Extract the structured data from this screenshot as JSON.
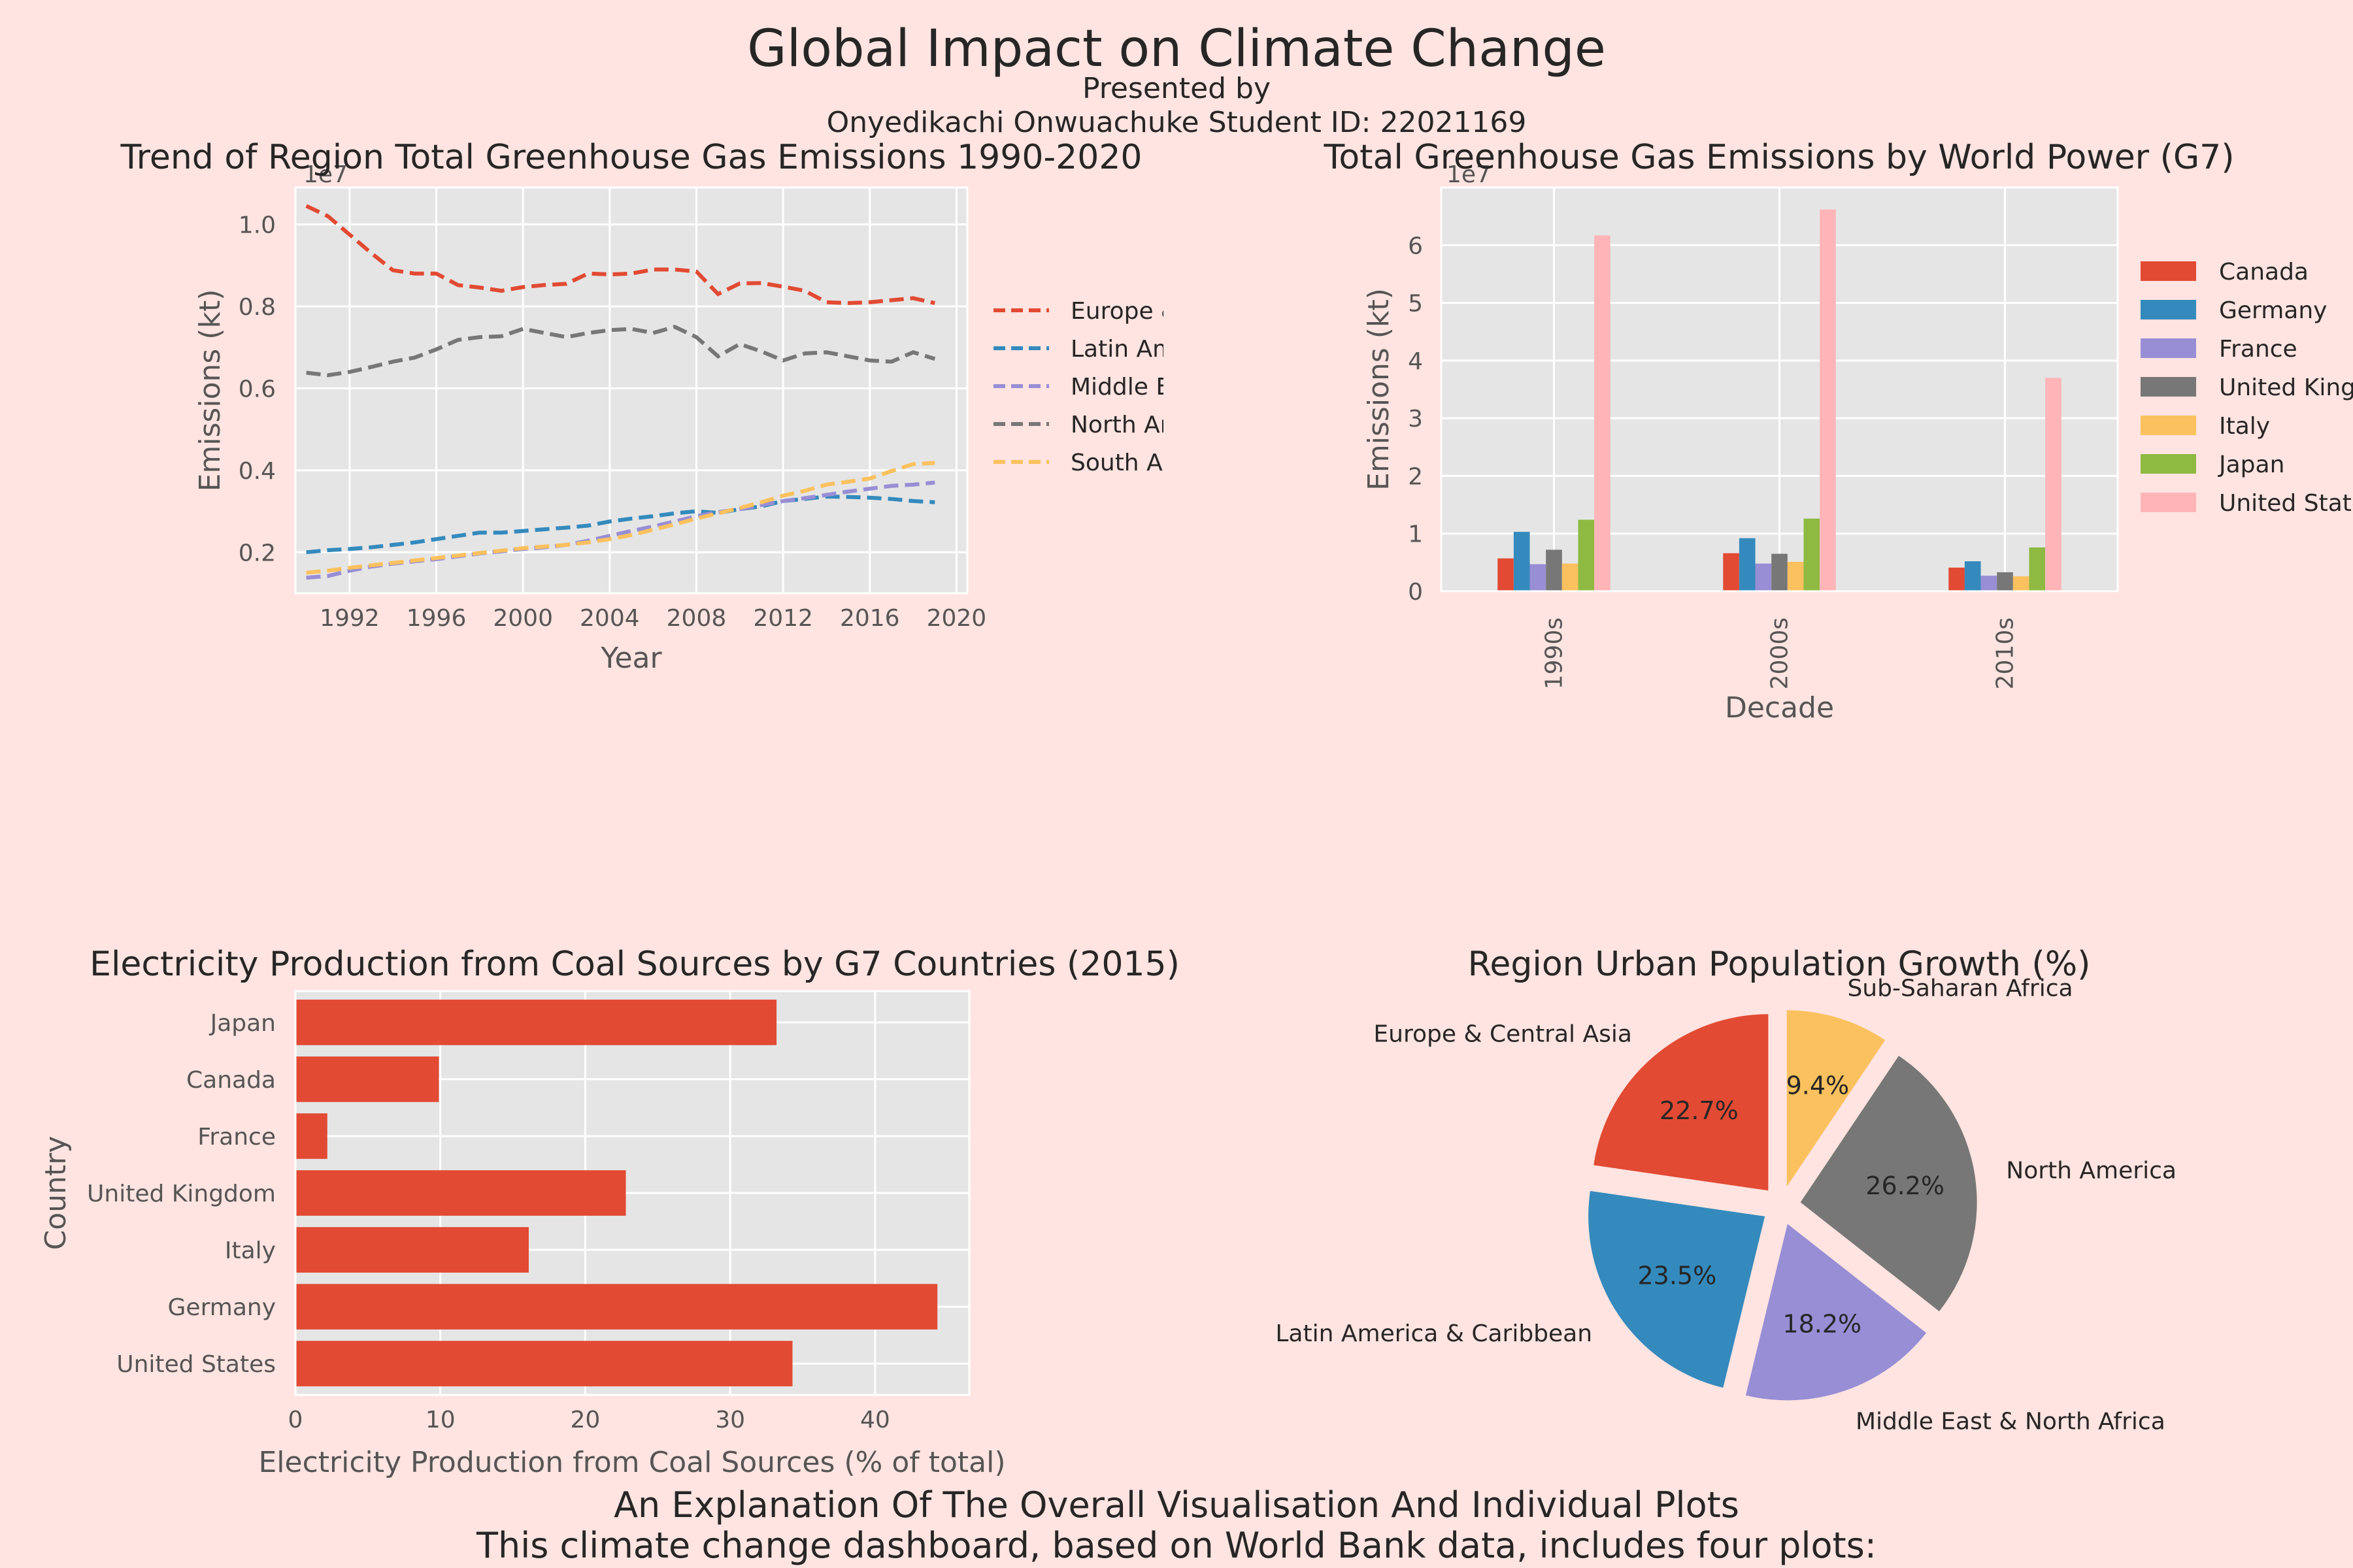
{
  "header": {
    "title": "Global Impact on Climate Change",
    "presented_by": "Presented by",
    "student": "Onyedikachi Onwuachuke Student ID: 22021169"
  },
  "explanation": {
    "title": "An Explanation Of The Overall Visualisation And Individual Plots",
    "line1": "This climate change dashboard, based on World Bank data, includes four plots:"
  },
  "chart_data": [
    {
      "type": "line",
      "title": "Trend of Region Total Greenhouse Gas Emissions 1990-2020",
      "xlabel": "Year",
      "ylabel": "Emissions (kt)",
      "offset_label": "1e7",
      "line_style": "dashed",
      "grid": true,
      "legend": "outside-right",
      "xlim": [
        1989.5,
        2020.5
      ],
      "ylim": [
        0.1,
        1.09
      ],
      "xticks": [
        1992,
        1996,
        2000,
        2004,
        2008,
        2012,
        2016,
        2020
      ],
      "yticks": [
        0.2,
        0.4,
        0.6,
        0.8,
        1.0
      ],
      "x": [
        1990,
        1991,
        1992,
        1993,
        1994,
        1995,
        1996,
        1997,
        1998,
        1999,
        2000,
        2001,
        2002,
        2003,
        2004,
        2005,
        2006,
        2007,
        2008,
        2009,
        2010,
        2011,
        2012,
        2013,
        2014,
        2015,
        2016,
        2017,
        2018,
        2019
      ],
      "series": [
        {
          "name": "Europe & Central Asia",
          "color": "#E24A33",
          "values": [
            1.045,
            1.02,
            0.975,
            0.93,
            0.888,
            0.88,
            0.88,
            0.852,
            0.846,
            0.838,
            0.847,
            0.852,
            0.855,
            0.88,
            0.878,
            0.88,
            0.89,
            0.89,
            0.885,
            0.83,
            0.856,
            0.857,
            0.848,
            0.838,
            0.81,
            0.808,
            0.81,
            0.815,
            0.82,
            0.808
          ]
        },
        {
          "name": "Latin America & Caribbean",
          "color": "#348ABD",
          "values": [
            0.2,
            0.205,
            0.208,
            0.212,
            0.218,
            0.224,
            0.232,
            0.24,
            0.248,
            0.248,
            0.252,
            0.256,
            0.26,
            0.265,
            0.275,
            0.282,
            0.288,
            0.295,
            0.3,
            0.296,
            0.305,
            0.312,
            0.325,
            0.33,
            0.336,
            0.335,
            0.333,
            0.33,
            0.325,
            0.322
          ]
        },
        {
          "name": "Middle East & North Africa",
          "color": "#988ED5",
          "values": [
            0.138,
            0.142,
            0.155,
            0.165,
            0.172,
            0.178,
            0.183,
            0.19,
            0.197,
            0.202,
            0.208,
            0.212,
            0.218,
            0.228,
            0.24,
            0.252,
            0.263,
            0.275,
            0.288,
            0.298,
            0.305,
            0.315,
            0.325,
            0.332,
            0.34,
            0.348,
            0.355,
            0.362,
            0.365,
            0.37
          ]
        },
        {
          "name": "North America",
          "color": "#777777",
          "values": [
            0.638,
            0.632,
            0.64,
            0.652,
            0.665,
            0.675,
            0.695,
            0.718,
            0.725,
            0.727,
            0.745,
            0.735,
            0.725,
            0.735,
            0.742,
            0.745,
            0.735,
            0.75,
            0.725,
            0.678,
            0.708,
            0.69,
            0.668,
            0.685,
            0.688,
            0.678,
            0.668,
            0.665,
            0.688,
            0.672
          ]
        },
        {
          "name": "South Asia",
          "color": "#FBC15E",
          "values": [
            0.15,
            0.155,
            0.162,
            0.168,
            0.174,
            0.18,
            0.186,
            0.192,
            0.198,
            0.204,
            0.21,
            0.214,
            0.218,
            0.224,
            0.232,
            0.242,
            0.255,
            0.268,
            0.282,
            0.295,
            0.308,
            0.322,
            0.338,
            0.35,
            0.365,
            0.372,
            0.38,
            0.398,
            0.415,
            0.418
          ]
        }
      ]
    },
    {
      "type": "bar",
      "title": "Total Greenhouse Gas Emissions by World Power (G7)",
      "xlabel": "Decade",
      "ylabel": "Emissions (kt)",
      "offset_label": "1e7",
      "grid": true,
      "legend": "outside-right",
      "ylim": [
        0,
        7.0
      ],
      "yticks": [
        0,
        1,
        2,
        3,
        4,
        5,
        6
      ],
      "categories": [
        "1990s",
        "2000s",
        "2010s"
      ],
      "series": [
        {
          "name": "Canada",
          "color": "#E24A33",
          "values": [
            0.57,
            0.66,
            0.41
          ]
        },
        {
          "name": "Germany",
          "color": "#348ABD",
          "values": [
            1.03,
            0.92,
            0.52
          ]
        },
        {
          "name": "France",
          "color": "#988ED5",
          "values": [
            0.47,
            0.48,
            0.27
          ]
        },
        {
          "name": "United Kingdom",
          "color": "#777777",
          "values": [
            0.72,
            0.65,
            0.33
          ]
        },
        {
          "name": "Italy",
          "color": "#FBC15E",
          "values": [
            0.48,
            0.51,
            0.26
          ]
        },
        {
          "name": "Japan",
          "color": "#8EBA42",
          "values": [
            1.24,
            1.26,
            0.76
          ]
        },
        {
          "name": "United States",
          "color": "#FFB5B8",
          "values": [
            6.17,
            6.62,
            3.7
          ]
        }
      ]
    },
    {
      "type": "bar",
      "orientation": "horizontal",
      "title": "Electricity Production from Coal Sources by G7 Countries (2015)",
      "xlabel": "Electricity Production from Coal Sources (% of total)",
      "ylabel": "Country",
      "color": "#E24A33",
      "grid": true,
      "xlim": [
        0,
        46.5
      ],
      "xticks": [
        0,
        10,
        20,
        30,
        40
      ],
      "categories": [
        "Japan",
        "Canada",
        "France",
        "United Kingdom",
        "Italy",
        "Germany",
        "United States"
      ],
      "values": [
        33.2,
        9.9,
        2.2,
        22.8,
        16.1,
        44.3,
        34.3
      ]
    },
    {
      "type": "pie",
      "title": "Region Urban Population Growth (%)",
      "exploded": true,
      "start_angle": 90,
      "direction": "counterclockwise",
      "labels": [
        "Europe & Central Asia",
        "Latin America & Caribbean",
        "Middle East & North Africa",
        "North America",
        "Sub-Saharan Africa"
      ],
      "values": [
        22.7,
        23.5,
        18.2,
        26.2,
        9.4
      ],
      "value_labels": [
        "22.7%",
        "23.5%",
        "18.2%",
        "26.2%",
        "9.4%"
      ],
      "colors": [
        "#E24A33",
        "#348ABD",
        "#988ED5",
        "#777777",
        "#FBC15E"
      ]
    }
  ]
}
